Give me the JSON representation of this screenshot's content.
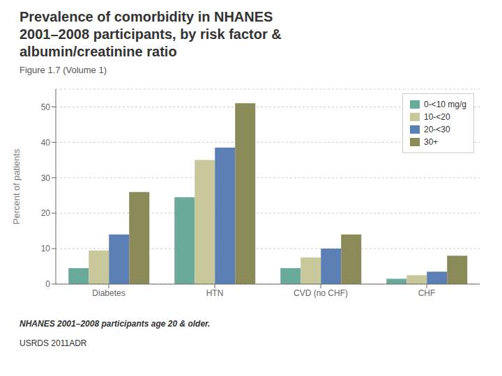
{
  "chart_data": {
    "type": "bar",
    "title": "Prevalence of comorbidity in NHANES\n2001–2008 participants, by risk factor &\nalbumin/creatinine ratio",
    "subtitle": "Figure 1.7 (Volume 1)",
    "annotations": [
      "NHANES 2001–2008 participants age 20 & older.",
      "USRDS 2011ADR"
    ],
    "ylabel": "Percent of patients",
    "categories": [
      "Diabetes",
      "HTN",
      "CVD (no CHF)",
      "CHF"
    ],
    "series": [
      {
        "name": "0-<10 mg/g",
        "color": "#6aaa9b",
        "values": [
          4.5,
          24.5,
          4.5,
          1.5
        ]
      },
      {
        "name": "10-<20",
        "color": "#c8c89a",
        "values": [
          9.5,
          35.0,
          7.5,
          2.5
        ]
      },
      {
        "name": "20-<30",
        "color": "#5b7fb5",
        "values": [
          14.0,
          38.5,
          10.0,
          3.5
        ]
      },
      {
        "name": "30+",
        "color": "#8b8b5a",
        "values": [
          26.0,
          51.0,
          14.0,
          8.0
        ]
      }
    ],
    "ylim": [
      0,
      55
    ],
    "yticks": [
      0,
      10,
      20,
      30,
      40,
      50
    ],
    "grid": true,
    "legend": "upper right"
  }
}
